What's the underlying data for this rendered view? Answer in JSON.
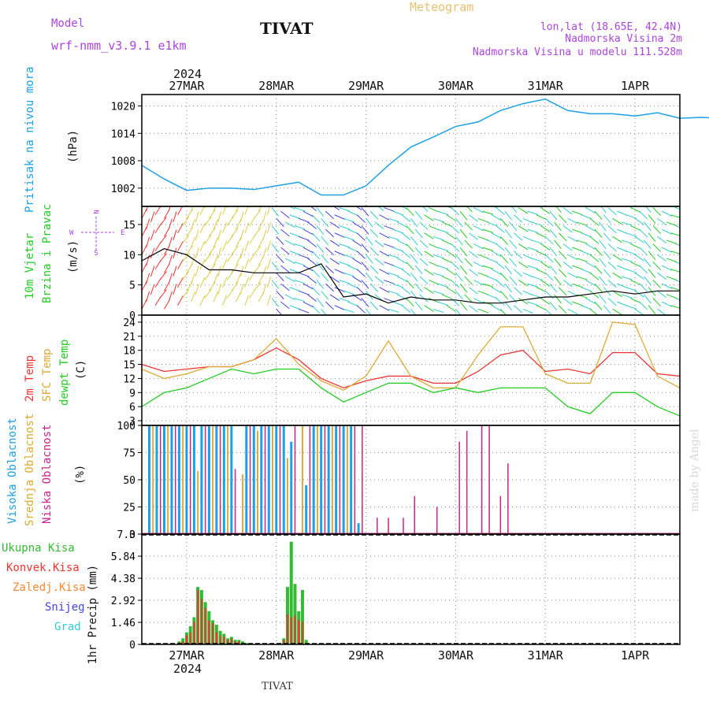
{
  "header": {
    "model_label": "Model",
    "model_name": "wrf-nmm_v3.9.1  e1km",
    "station": "TIVAT",
    "meteogram": "Meteogram",
    "lonlat": "lon,lat (18.65E, 42.4N)",
    "height": "Nadmorska Visina 2m",
    "model_height": "Nadmorska Visina u modelu 111.528m",
    "year": "2024",
    "footer_station": "TIVAT",
    "watermark": "made by Angel"
  },
  "colors": {
    "pressure": "#1ea0e6",
    "wind_green": "#22cc22",
    "wind_purple": "#aa44dd",
    "t2m": "#ee3333",
    "sfc": "#ddaa33",
    "dew": "#22cc22",
    "cloud_high": "#1ea0e6",
    "cloud_mid": "#ddaa33",
    "cloud_low": "#cc2288",
    "precip_total": "#33bb33",
    "precip_conv": "#ee3333",
    "precip_frz": "#ff8833",
    "precip_snow": "#4444dd",
    "precip_grad": "#33cccc"
  },
  "chart_data": [
    {
      "type": "line",
      "panel": "pressure",
      "ylabel_line1": "Pritisak na nivou mora",
      "ylabel_unit": "(hPa)",
      "yticks": [
        "1002",
        "1008",
        "1014",
        "1020"
      ],
      "ylim": [
        998,
        1022.5
      ],
      "x_unit": "hours from 2024-03-26 12UTC",
      "x": [
        0,
        6,
        12,
        18,
        24,
        30,
        36,
        42,
        48,
        54,
        60,
        66,
        72,
        78,
        84,
        90,
        96,
        102,
        108,
        114,
        120,
        126,
        132,
        138,
        144,
        150,
        156,
        162,
        168,
        174,
        180
      ],
      "values": [
        1007,
        1004,
        1001.5,
        1002,
        1002,
        1001.7,
        1002.5,
        1003.3,
        1000.5,
        1000.5,
        1002.5,
        1007,
        1011,
        1013.2,
        1015.5,
        1016.5,
        1019,
        1020.5,
        1021.5,
        1019,
        1018.3,
        1018.3,
        1017.8,
        1018.5,
        1017.3,
        1017.5,
        1017.2,
        1017.3,
        1018,
        1017,
        1016
      ]
    },
    {
      "type": "line",
      "panel": "wind",
      "ylabel_line1": "10m Vjetar",
      "ylabel_line2": "Brzina i Pravac",
      "ylabel_unit": "(m/s)",
      "compass": [
        "N",
        "W",
        "E",
        "S"
      ],
      "yticks": [
        "0",
        "5",
        "10",
        "15"
      ],
      "ylim": [
        0,
        18
      ],
      "x": [
        0,
        6,
        12,
        18,
        24,
        30,
        36,
        42,
        48,
        54,
        60,
        66,
        72,
        78,
        84,
        90,
        96,
        102,
        108,
        114,
        120,
        126,
        132,
        138,
        144,
        150,
        156,
        162,
        168,
        174,
        180
      ],
      "values": [
        9,
        11,
        10,
        7.5,
        7.5,
        7,
        7,
        7,
        8.5,
        3,
        3.5,
        2,
        3,
        2.5,
        2.5,
        2,
        2,
        2.5,
        3,
        3,
        3.5,
        4,
        3.5,
        4,
        4,
        4,
        5,
        5,
        5,
        5.5,
        6.5
      ]
    },
    {
      "type": "line",
      "panel": "temperature",
      "ylabel_line1": "2m Temp",
      "ylabel_line2": "SFC Temp",
      "ylabel_line3": "dewpt Temp",
      "ylabel_unit": "(C)",
      "yticks": [
        "3",
        "6",
        "9",
        "12",
        "15",
        "18",
        "21",
        "24"
      ],
      "ylim": [
        2,
        25.5
      ],
      "x": [
        0,
        6,
        12,
        18,
        24,
        30,
        36,
        42,
        48,
        54,
        60,
        66,
        72,
        78,
        84,
        90,
        96,
        102,
        108,
        114,
        120,
        126,
        132,
        138,
        144,
        150,
        156,
        162,
        168,
        174,
        180
      ],
      "series": [
        {
          "name": "2m Temp",
          "values": [
            15,
            13.5,
            14,
            14.5,
            14.5,
            16,
            18.5,
            16,
            12,
            10,
            11.5,
            12.5,
            12.5,
            11,
            11,
            13.5,
            17,
            18,
            13.5,
            14,
            13,
            17.5,
            17.5,
            13,
            12.5,
            13.5,
            18.5,
            18.5,
            14,
            14,
            21
          ]
        },
        {
          "name": "SFC Temp",
          "values": [
            14,
            12,
            13,
            14.5,
            14.5,
            16,
            20.5,
            15,
            11.5,
            9.5,
            12.5,
            20,
            12.5,
            10,
            10,
            17,
            23,
            23,
            13,
            11,
            11,
            24,
            23.5,
            12.5,
            10,
            13,
            24,
            23.5,
            14,
            11,
            25
          ]
        },
        {
          "name": "dewpt Temp",
          "values": [
            6,
            9,
            10,
            12,
            14,
            13,
            14,
            14,
            10,
            7,
            9,
            11,
            11,
            9,
            10,
            9,
            10,
            10,
            10,
            6,
            4.5,
            9,
            9,
            6,
            4,
            5,
            8,
            9,
            5,
            5,
            8
          ]
        }
      ]
    },
    {
      "type": "bar",
      "panel": "clouds",
      "ylabel_line1": "Visoka Oblacnost",
      "ylabel_line2": "Srednja Oblacnost",
      "ylabel_line3": "Niska Oblacnost",
      "ylabel_unit": "(%)",
      "yticks": [
        "0",
        "25",
        "50",
        "75",
        "100"
      ],
      "ylim": [
        0,
        100
      ],
      "series": [
        {
          "name": "Visoka Oblacnost",
          "x": [
            2,
            4,
            6,
            8,
            10,
            12,
            14,
            16,
            18,
            20,
            22,
            24,
            28,
            30,
            32,
            34,
            36,
            38,
            40,
            44,
            46,
            48,
            50,
            52,
            54,
            56,
            58
          ],
          "values": [
            100,
            100,
            100,
            100,
            100,
            100,
            100,
            100,
            100,
            100,
            100,
            100,
            100,
            100,
            100,
            100,
            100,
            100,
            85,
            45,
            100,
            100,
            100,
            100,
            100,
            100,
            10
          ]
        },
        {
          "name": "Srednja Oblacnost",
          "x": [
            3,
            7,
            11,
            15,
            19,
            23,
            27,
            31,
            35,
            39,
            43,
            47,
            51,
            55
          ],
          "values": [
            100,
            100,
            100,
            58,
            100,
            100,
            55,
            95,
            100,
            70,
            100,
            100,
            100,
            100
          ]
        },
        {
          "name": "Niska Oblacnost",
          "x": [
            5,
            9,
            13,
            17,
            21,
            25,
            29,
            33,
            37,
            41,
            45,
            49,
            53,
            57,
            59,
            63,
            66,
            70,
            73,
            79,
            85,
            87,
            91,
            93,
            96,
            98
          ],
          "values": [
            100,
            100,
            100,
            100,
            100,
            60,
            100,
            100,
            100,
            100,
            100,
            100,
            100,
            100,
            100,
            15,
            15,
            15,
            35,
            25,
            85,
            95,
            100,
            100,
            35,
            65
          ]
        }
      ]
    },
    {
      "type": "bar",
      "panel": "precip",
      "ylabel_line1": "1hr Precip",
      "ylabel_unit": "(mm)",
      "legend": [
        "Ukupna Kisa",
        "Konvek.Kisa",
        "Zaledj.Kisa",
        "Snijeg",
        "Grad"
      ],
      "yticks": [
        "0",
        "1.46",
        "2.92",
        "4.38",
        "5.84",
        "7.3"
      ],
      "ylim": [
        0,
        7.3
      ],
      "x": [
        10,
        11,
        12,
        13,
        14,
        15,
        16,
        17,
        18,
        19,
        20,
        21,
        22,
        23,
        24,
        25,
        26,
        27,
        28,
        38,
        39,
        40,
        41,
        42,
        43,
        44,
        78
      ],
      "series": [
        {
          "name": "Ukupna Kisa",
          "values": [
            0.2,
            0.4,
            0.8,
            1.2,
            1.8,
            3.8,
            3.6,
            2.8,
            2.2,
            1.6,
            1.3,
            0.9,
            0.7,
            0.4,
            0.5,
            0.3,
            0.3,
            0.2,
            0.1,
            0.4,
            3.8,
            6.8,
            4.0,
            2.2,
            3.6,
            0.3,
            0.1
          ]
        },
        {
          "name": "Konvek.Kisa",
          "values": [
            0.1,
            0.2,
            0.6,
            0.8,
            1.5,
            3.6,
            3.0,
            2.4,
            1.6,
            1.4,
            0.8,
            0.6,
            0.5,
            0.3,
            0.4,
            0.2,
            0.2,
            0.1,
            0.05,
            0.3,
            2.0,
            1.8,
            1.9,
            1.6,
            1.5,
            0.1,
            0
          ]
        }
      ]
    }
  ],
  "xaxis": {
    "date_ticks": [
      {
        "label": "27MAR",
        "h": 12
      },
      {
        "label": "28MAR",
        "h": 36
      },
      {
        "label": "29MAR",
        "h": 60
      },
      {
        "label": "30MAR",
        "h": 84
      },
      {
        "label": "31MAR",
        "h": 108
      },
      {
        "label": "1APR",
        "h": 132
      }
    ],
    "range_hours": [
      0,
      144
    ]
  }
}
